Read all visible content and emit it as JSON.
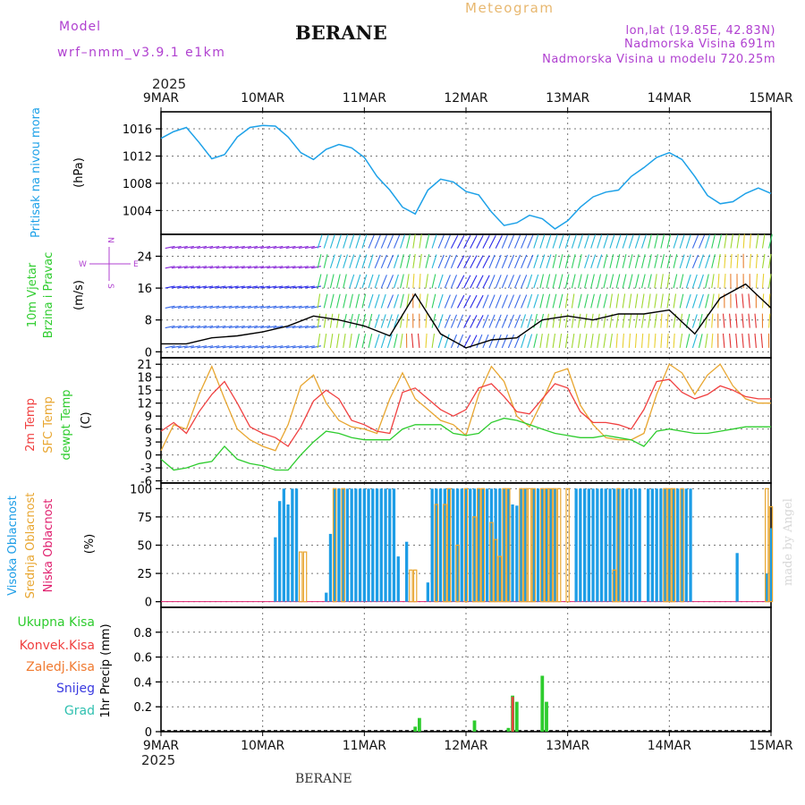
{
  "header": {
    "model_label": "Model",
    "model_name": "wrf–nmm_v3.9.1 e1km",
    "station": "BERANE",
    "meteogram_label": "Meteogram",
    "coords": "lon,lat (19.85E, 42.83N)",
    "elevation": "Nadmorska Visina 691m",
    "model_elevation": "Nadmorska Visina u modelu 720.25m",
    "year_top": "2025",
    "year_bottom": "2025",
    "footer_station": "BERANE",
    "watermark": "made by Angel"
  },
  "colors": {
    "pressure": "#1da1e8",
    "temp2m": "#f04040",
    "sfc_temp": "#e8a630",
    "dewpt": "#2ecc2e",
    "wind_speed": "#000000",
    "high_cloud": "#1d9de6",
    "mid_cloud": "#e8a630",
    "low_cloud": "#e0206e",
    "total_precip": "#2ecc2e",
    "conv_precip": "#f04040",
    "frozen_precip": "#f07a30",
    "snow": "#3a3ae0",
    "hail": "#30c0b0",
    "purple_text": "#b040d0",
    "meteogram_text": "#e8b870"
  },
  "chart_data": [
    {
      "type": "line",
      "panel": "pressure",
      "ylabel": [
        "Pritisak na nivou mora",
        "(hPa)"
      ],
      "x_ticks": [
        "9MAR",
        "10MAR",
        "11MAR",
        "12MAR",
        "13MAR",
        "14MAR",
        "15MAR"
      ],
      "x_range": [
        0,
        144
      ],
      "ylim": [
        1000.5,
        1018.5
      ],
      "y_ticks": [
        1004,
        1008,
        1012,
        1016
      ],
      "grid": true,
      "series": [
        {
          "x": [
            0,
            3,
            6,
            9,
            12,
            15,
            18,
            21,
            24,
            27,
            30,
            33,
            36,
            39,
            42,
            45,
            48,
            51,
            54,
            57,
            60,
            63,
            66,
            69,
            72,
            75,
            78,
            81,
            84,
            87,
            90,
            93,
            96,
            99,
            102,
            105,
            108,
            111,
            114,
            117,
            120,
            123,
            126,
            129,
            132,
            135,
            138,
            141,
            144
          ],
          "values": [
            1014.6,
            1015.6,
            1016.2,
            1014.0,
            1011.6,
            1012.2,
            1014.8,
            1016.2,
            1016.5,
            1016.4,
            1014.8,
            1012.5,
            1011.5,
            1013.0,
            1013.7,
            1013.2,
            1011.8,
            1009.0,
            1007.0,
            1004.5,
            1003.5,
            1007.0,
            1008.6,
            1008.2,
            1006.8,
            1006.3,
            1003.8,
            1001.8,
            1002.2,
            1003.3,
            1002.8,
            1001.3,
            1002.5,
            1004.5,
            1006.0,
            1006.7,
            1007.0,
            1009.0,
            1010.3,
            1011.8,
            1012.5,
            1011.5,
            1009.0,
            1006.2,
            1005.0,
            1005.3,
            1006.5,
            1007.3,
            1006.5
          ]
        }
      ]
    },
    {
      "type": "line",
      "panel": "wind",
      "ylabel": [
        "10m Vjetar",
        "Brzina i Pravac",
        "(m/s)"
      ],
      "compass": {
        "north": "N",
        "west": "W",
        "east": "E",
        "south": "S"
      },
      "ylim": [
        -1.5,
        29.5
      ],
      "y_ticks": [
        0,
        8,
        16,
        24
      ],
      "grid": true,
      "series": [
        {
          "name": "speed",
          "x": [
            0,
            6,
            12,
            18,
            24,
            30,
            36,
            42,
            48,
            54,
            60,
            66,
            72,
            78,
            84,
            90,
            96,
            102,
            108,
            114,
            120,
            126,
            132,
            138,
            144
          ],
          "values": [
            2.0,
            2.0,
            3.5,
            4.0,
            5.0,
            6.5,
            9.0,
            8.0,
            6.5,
            4.0,
            14.5,
            4.5,
            1.0,
            3.0,
            3.5,
            8.0,
            9.0,
            8.0,
            9.5,
            9.5,
            10.5,
            4.5,
            13.5,
            17.0,
            11.0
          ]
        }
      ]
    },
    {
      "type": "line",
      "panel": "temperature",
      "ylabel": [
        "2m Temp",
        "SFC Temp",
        "dewpt Temp",
        "(C)"
      ],
      "ylim": [
        -6.5,
        22.5
      ],
      "y_ticks": [
        -6,
        -3,
        0,
        3,
        6,
        9,
        12,
        15,
        18,
        21
      ],
      "grid": true,
      "series": [
        {
          "name": "2m Temp",
          "x": [
            0,
            3,
            6,
            9,
            12,
            15,
            18,
            21,
            24,
            27,
            30,
            33,
            36,
            39,
            42,
            45,
            48,
            51,
            54,
            57,
            60,
            63,
            66,
            69,
            72,
            75,
            78,
            81,
            84,
            87,
            90,
            93,
            96,
            99,
            102,
            105,
            108,
            111,
            114,
            117,
            120,
            123,
            126,
            129,
            132,
            135,
            138,
            141,
            144
          ],
          "values": [
            5.5,
            7.5,
            5.0,
            10.0,
            14.0,
            17.0,
            12.0,
            6.5,
            5.0,
            4.0,
            2.0,
            6.5,
            12.5,
            15.0,
            13.0,
            8.0,
            7.0,
            5.5,
            5.0,
            14.5,
            15.5,
            13.0,
            10.5,
            9.0,
            10.5,
            15.5,
            16.5,
            13.5,
            10.0,
            9.5,
            13.0,
            16.5,
            15.5,
            10.0,
            7.5,
            7.5,
            7.0,
            6.0,
            10.5,
            17.0,
            17.5,
            14.5,
            13.0,
            14.0,
            16.0,
            15.0,
            13.5,
            13.0,
            13.0
          ]
        },
        {
          "name": "SFC Temp",
          "x": [
            0,
            3,
            6,
            9,
            12,
            15,
            18,
            21,
            24,
            27,
            30,
            33,
            36,
            39,
            42,
            45,
            48,
            51,
            54,
            57,
            60,
            63,
            66,
            69,
            72,
            75,
            78,
            81,
            84,
            87,
            90,
            93,
            96,
            99,
            102,
            105,
            108,
            111,
            114,
            117,
            120,
            123,
            126,
            129,
            132,
            135,
            138,
            141,
            144
          ],
          "values": [
            1.0,
            7.0,
            6.0,
            14.0,
            20.5,
            13.0,
            6.0,
            3.5,
            2.0,
            1.0,
            7.0,
            16.0,
            18.5,
            12.0,
            8.0,
            6.5,
            6.0,
            5.0,
            13.0,
            19.0,
            13.0,
            10.5,
            8.0,
            7.0,
            4.5,
            14.0,
            20.5,
            17.0,
            9.0,
            6.5,
            12.5,
            19.0,
            20.0,
            11.5,
            7.0,
            4.0,
            3.5,
            3.5,
            5.0,
            14.0,
            21.0,
            19.0,
            14.0,
            18.5,
            21.0,
            16.0,
            13.0,
            12.0,
            12.0
          ]
        },
        {
          "name": "dewpt Temp",
          "x": [
            0,
            3,
            6,
            9,
            12,
            15,
            18,
            21,
            24,
            27,
            30,
            33,
            36,
            39,
            42,
            45,
            48,
            51,
            54,
            57,
            60,
            63,
            66,
            69,
            72,
            75,
            78,
            81,
            84,
            87,
            90,
            93,
            96,
            99,
            102,
            105,
            108,
            111,
            114,
            117,
            120,
            123,
            126,
            129,
            132,
            135,
            138,
            141,
            144
          ],
          "values": [
            -1.0,
            -3.5,
            -3.0,
            -2.0,
            -1.5,
            2.0,
            -1.0,
            -2.0,
            -2.5,
            -3.5,
            -3.5,
            0.0,
            3.0,
            5.5,
            5.0,
            4.0,
            3.5,
            3.5,
            3.5,
            6.0,
            7.0,
            7.0,
            7.0,
            5.0,
            4.5,
            5.0,
            7.5,
            8.5,
            8.0,
            7.0,
            6.0,
            5.0,
            4.5,
            4.0,
            4.0,
            4.5,
            4.0,
            3.5,
            2.0,
            5.5,
            6.0,
            5.5,
            5.0,
            5.0,
            5.5,
            6.0,
            6.5,
            6.5,
            6.5
          ]
        }
      ]
    },
    {
      "type": "bar",
      "panel": "clouds",
      "ylabel": [
        "Visoka Oblacnost",
        "Srednja Oblacnost",
        "Niska Oblacnost",
        "(%)"
      ],
      "ylim": [
        -5,
        105
      ],
      "y_ticks": [
        0,
        25,
        50,
        75,
        100
      ],
      "grid": true,
      "series": [
        {
          "name": "Visoka Oblacnost",
          "x": [
            27,
            28,
            29,
            30,
            31,
            32,
            39,
            40,
            41,
            42,
            43,
            44,
            45,
            46,
            47,
            48,
            49,
            50,
            51,
            52,
            53,
            54,
            55,
            56,
            58,
            63,
            64,
            65,
            66,
            67,
            68,
            69,
            70,
            71,
            72,
            73,
            74,
            75,
            76,
            77,
            78,
            79,
            80,
            81,
            82,
            83,
            84,
            85,
            86,
            88,
            89,
            90,
            91,
            92,
            93,
            98,
            99,
            100,
            101,
            102,
            103,
            104,
            105,
            106,
            107,
            108,
            109,
            110,
            111,
            112,
            113,
            115,
            116,
            117,
            118,
            119,
            120,
            121,
            122,
            123,
            124,
            125,
            136,
            143,
            144
          ],
          "values": [
            57,
            89,
            100,
            86,
            100,
            100,
            8,
            60,
            100,
            100,
            100,
            100,
            100,
            100,
            100,
            100,
            100,
            100,
            100,
            100,
            100,
            100,
            100,
            40,
            53,
            17,
            100,
            100,
            100,
            100,
            100,
            100,
            100,
            100,
            100,
            100,
            100,
            100,
            100,
            100,
            100,
            100,
            100,
            100,
            100,
            86,
            85,
            100,
            100,
            100,
            100,
            100,
            100,
            100,
            100,
            100,
            100,
            100,
            100,
            100,
            100,
            100,
            100,
            100,
            100,
            100,
            100,
            100,
            100,
            100,
            100,
            100,
            100,
            100,
            100,
            100,
            100,
            100,
            100,
            100,
            100,
            100,
            43,
            25,
            65
          ]
        },
        {
          "name": "Srednja Oblacnost",
          "x": [
            33,
            34,
            41,
            43,
            59,
            60,
            65,
            67,
            68,
            70,
            72,
            74,
            75,
            76,
            78,
            79,
            80,
            81,
            82,
            85,
            86,
            87,
            88,
            90,
            91,
            92,
            93,
            94,
            96,
            107,
            108,
            119,
            120,
            121,
            123,
            143,
            144
          ],
          "values": [
            44,
            44,
            100,
            100,
            28,
            28,
            86,
            86,
            100,
            50,
            100,
            75,
            100,
            100,
            70,
            55,
            40,
            100,
            100,
            100,
            100,
            100,
            100,
            100,
            100,
            100,
            100,
            100,
            100,
            28,
            100,
            100,
            100,
            100,
            100,
            100,
            84
          ]
        },
        {
          "name": "Niska Oblacnost",
          "x": [],
          "values": []
        }
      ]
    },
    {
      "type": "bar",
      "panel": "precip",
      "ylabel": [
        "1hr Precip (mm)"
      ],
      "legend": [
        "Ukupna Kisa",
        "Konvek.Kisa",
        "Zaledj.Kisa",
        "Snijeg",
        "Grad"
      ],
      "ylim": [
        0,
        1.0
      ],
      "y_ticks": [
        0,
        0.2,
        0.4,
        0.6,
        0.8
      ],
      "y_tick_labels": [
        "0",
        "0.2",
        "0.4",
        "0.6",
        "0.8"
      ],
      "grid": true,
      "series": [
        {
          "name": "Ukupna Kisa",
          "x": [
            60,
            61,
            74,
            82,
            83,
            84,
            90,
            91
          ],
          "values": [
            0.04,
            0.11,
            0.09,
            0.03,
            0.29,
            0.24,
            0.45,
            0.24
          ]
        },
        {
          "name": "Konvek.Kisa",
          "x": [
            83
          ],
          "values": [
            0.28
          ]
        },
        {
          "name": "Zaledj.Kisa",
          "x": [],
          "values": []
        },
        {
          "name": "Snijeg",
          "x": [],
          "values": []
        },
        {
          "name": "Grad",
          "x": [],
          "values": []
        }
      ]
    }
  ]
}
